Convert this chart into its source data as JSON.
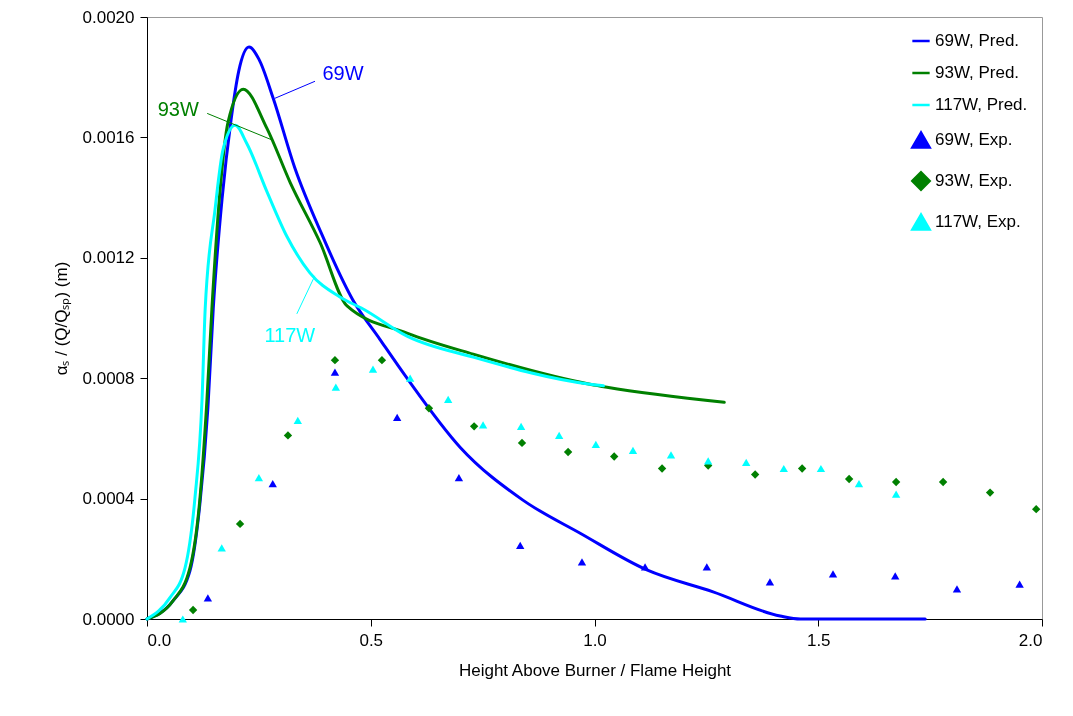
{
  "chart_data": {
    "type": "line",
    "xlabel": "Height Above Burner / Flame Height",
    "ylabel": "αₛ / (Q/Qₛₚ) (m)",
    "xlim": [
      0,
      2
    ],
    "xticks": [
      {
        "value": 0,
        "label": "0.0"
      },
      {
        "value": 0.5,
        "label": "0.5"
      },
      {
        "value": 1,
        "label": "1.0"
      },
      {
        "value": 1.5,
        "label": "1.5"
      },
      {
        "value": 2,
        "label": "2.0"
      }
    ],
    "ylim": [
      0,
      0.002
    ],
    "yticks": [
      {
        "value": 0,
        "label": "0.0000"
      },
      {
        "value": 0.0004,
        "label": "0.0004"
      },
      {
        "value": 0.0008,
        "label": "0.0008"
      },
      {
        "value": 0.0012,
        "label": "0.0012"
      },
      {
        "value": 0.0016,
        "label": "0.0016"
      },
      {
        "value": 0.002,
        "label": "0.0020"
      }
    ],
    "grid": false,
    "legend": "top right",
    "series": [
      {
        "name": "69W, Pred.",
        "marker": "none",
        "color": "#0000ff",
        "x": [
          0,
          0.058,
          0.096,
          0.118,
          0.136,
          0.148,
          0.168,
          0.188,
          0.205,
          0.228,
          0.25,
          0.282,
          0.33,
          0.39,
          0.46,
          0.52,
          0.581,
          0.7,
          0.84,
          0.968,
          1.117,
          1.265,
          1.415,
          1.46,
          1.739
        ],
        "values": [
          0,
          6e-05,
          0.00016,
          0.00038,
          0.0007,
          0.00103,
          0.0014,
          0.00166,
          0.00182,
          0.0019,
          0.00186,
          0.00173,
          0.0015,
          0.00128,
          0.00106,
          0.00093,
          0.0008,
          0.00057,
          0.000395,
          0.000285,
          0.000163,
          9e-05,
          1e-05,
          0,
          0
        ]
      },
      {
        "name": "93W, Pred.",
        "marker": "none",
        "color": "#008000",
        "x": [
          0,
          0.058,
          0.096,
          0.118,
          0.134,
          0.145,
          0.163,
          0.181,
          0.215,
          0.268,
          0.32,
          0.387,
          0.447,
          0.581,
          0.729,
          0.99,
          1.028,
          1.29
        ],
        "values": [
          0,
          6e-05,
          0.00017,
          0.000395,
          0.00073,
          0.00103,
          0.00142,
          0.00165,
          0.00176,
          0.00163,
          0.00145,
          0.00125,
          0.00104,
          0.00095,
          0.00088,
          0.00078,
          0.00077,
          0.00072
        ]
      },
      {
        "name": "117W, Pred.",
        "marker": "none",
        "color": "#00ffff",
        "x": [
          0,
          0.051,
          0.085,
          0.107,
          0.123,
          0.13,
          0.152,
          0.17,
          0.197,
          0.223,
          0.268,
          0.313,
          0.364,
          0.431,
          0.483,
          0.581,
          0.729,
          0.99,
          1.02
        ],
        "values": [
          0,
          7e-05,
          0.00017,
          0.0004,
          0.00073,
          0.00103,
          0.00136,
          0.00156,
          0.00164,
          0.00158,
          0.00142,
          0.00127,
          0.00115,
          0.00107,
          0.00103,
          0.00094,
          0.00087,
          0.00078,
          0.000775
        ]
      },
      {
        "name": "69W, Exp.",
        "type": "scatter",
        "marker": "triangle",
        "color": "#0000ff",
        "x": [
          0.136,
          0.281,
          0.42,
          0.559,
          0.697,
          0.834,
          0.972,
          1.113,
          1.251,
          1.392,
          1.533,
          1.672,
          1.81,
          1.95
        ],
        "values": [
          7e-05,
          0.00045,
          0.00082,
          0.00067,
          0.00047,
          0.000245,
          0.00019,
          0.000173,
          0.000173,
          0.000123,
          0.00015,
          0.000143,
          0.0001,
          0.000116
        ]
      },
      {
        "name": "93W, Exp.",
        "type": "scatter",
        "marker": "diamond",
        "color": "#008000",
        "x": [
          0.103,
          0.208,
          0.315,
          0.42,
          0.525,
          0.63,
          0.731,
          0.838,
          0.941,
          1.044,
          1.151,
          1.254,
          1.359,
          1.464,
          1.569,
          1.674,
          1.779,
          1.884,
          1.987
        ],
        "values": [
          3e-05,
          0.000316,
          0.00061,
          0.00086,
          0.00086,
          0.0007,
          0.00064,
          0.000585,
          0.000555,
          0.00054,
          0.0005,
          0.00051,
          0.00048,
          0.0005,
          0.000465,
          0.000455,
          0.000455,
          0.00042,
          0.000365
        ]
      },
      {
        "name": "117W, Exp.",
        "type": "scatter",
        "marker": "triangle",
        "color": "#00ffff",
        "x": [
          0.08,
          0.167,
          0.25,
          0.337,
          0.422,
          0.505,
          0.588,
          0.673,
          0.751,
          0.836,
          0.921,
          1.003,
          1.086,
          1.171,
          1.254,
          1.339,
          1.423,
          1.506,
          1.591,
          1.674
        ],
        "values": [
          0,
          0.000236,
          0.00047,
          0.00066,
          0.00077,
          0.00083,
          0.0008,
          0.00073,
          0.000645,
          0.00064,
          0.00061,
          0.00058,
          0.00056,
          0.000545,
          0.000525,
          0.00052,
          0.0005,
          0.0005,
          0.00045,
          0.000415
        ]
      }
    ],
    "annotations": [
      {
        "text": "69W",
        "x": 0.286,
        "y": 0.00173
      },
      {
        "text": "93W",
        "x": 0.282,
        "y": 0.00159
      },
      {
        "text": "117W",
        "x": 0.375,
        "y": 0.00114
      }
    ]
  }
}
